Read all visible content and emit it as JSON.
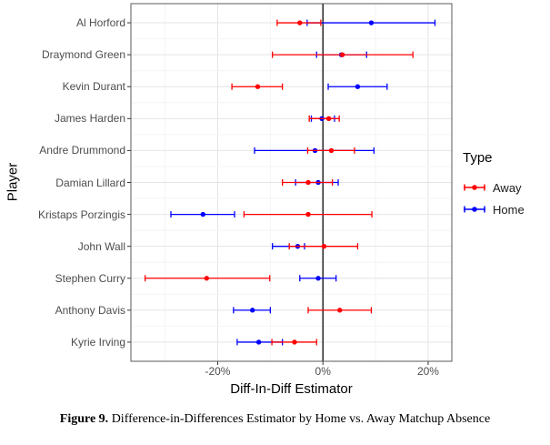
{
  "chart": {
    "y_axis_title": "Player",
    "x_axis_title": "Diff-In-Diff Estimator",
    "legend": {
      "title": "Type",
      "items": [
        {
          "label": "Away",
          "color": "#ff0000"
        },
        {
          "label": "Home",
          "color": "#0000ff"
        }
      ]
    }
  },
  "caption": {
    "label": "Figure 9.",
    "text": " Difference-in-Differences Estimator by Home vs. Away Matchup Absence"
  },
  "chart_data": {
    "type": "pointrange",
    "orientation": "horizontal",
    "title": "",
    "xlabel": "Diff-In-Diff Estimator",
    "ylabel": "Player",
    "x_unit": "%",
    "xlim": [
      -36.5,
      24.5
    ],
    "x_ticks": [
      {
        "v": -20,
        "label": "-20%"
      },
      {
        "v": 0,
        "label": "0%"
      },
      {
        "v": 20,
        "label": "20%"
      }
    ],
    "x_minor_ticks": [
      -30,
      -10,
      10
    ],
    "zero_line_x": 0,
    "grid": true,
    "legend_position": "right",
    "categories": [
      "Al Horford",
      "Draymond Green",
      "Kevin Durant",
      "James Harden",
      "Andre Drummond",
      "Damian Lillard",
      "Kristaps Porzingis",
      "John Wall",
      "Stephen Curry",
      "Anthony Davis",
      "Kyrie Irving"
    ],
    "series": [
      {
        "name": "Away",
        "color": "#ff0000",
        "points": [
          {
            "est": -4.4,
            "lo": -8.7,
            "hi": -0.4
          },
          {
            "est": 3.7,
            "lo": -9.6,
            "hi": 17.1
          },
          {
            "est": -12.4,
            "lo": -17.3,
            "hi": -7.7
          },
          {
            "est": 1.1,
            "lo": -2.6,
            "hi": 3.1
          },
          {
            "est": 1.6,
            "lo": -2.9,
            "hi": 6.0
          },
          {
            "est": -2.8,
            "lo": -7.7,
            "hi": 1.8
          },
          {
            "est": -2.8,
            "lo": -15.0,
            "hi": 9.3
          },
          {
            "est": 0.2,
            "lo": -6.4,
            "hi": 6.6
          },
          {
            "est": -22.1,
            "lo": -33.8,
            "hi": -10.1
          },
          {
            "est": 3.2,
            "lo": -2.8,
            "hi": 9.2
          },
          {
            "est": -5.4,
            "lo": -9.7,
            "hi": -1.2
          }
        ]
      },
      {
        "name": "Home",
        "color": "#0000ff",
        "points": [
          {
            "est": 9.2,
            "lo": -3.0,
            "hi": 21.3
          },
          {
            "est": 3.5,
            "lo": -1.2,
            "hi": 8.3
          },
          {
            "est": 6.6,
            "lo": 1.0,
            "hi": 12.2
          },
          {
            "est": -0.2,
            "lo": -2.2,
            "hi": 2.2
          },
          {
            "est": -1.5,
            "lo": -13.0,
            "hi": 9.7
          },
          {
            "est": -0.9,
            "lo": -5.2,
            "hi": 2.9
          },
          {
            "est": -22.8,
            "lo": -28.9,
            "hi": -16.8
          },
          {
            "est": -4.8,
            "lo": -9.6,
            "hi": -3.5
          },
          {
            "est": -0.9,
            "lo": -4.4,
            "hi": 2.5
          },
          {
            "est": -13.4,
            "lo": -17.0,
            "hi": -10.0
          },
          {
            "est": -12.2,
            "lo": -16.3,
            "hi": -7.7
          }
        ]
      }
    ],
    "style": {
      "zero_line_color": "#1a1a1a",
      "grid_major_color": "#e4e4e4",
      "grid_minor_color": "#f4f4f4",
      "panel_border_color": "#595959",
      "axis_text_color": "#4d4d4d",
      "tick_color": "#333333"
    }
  }
}
